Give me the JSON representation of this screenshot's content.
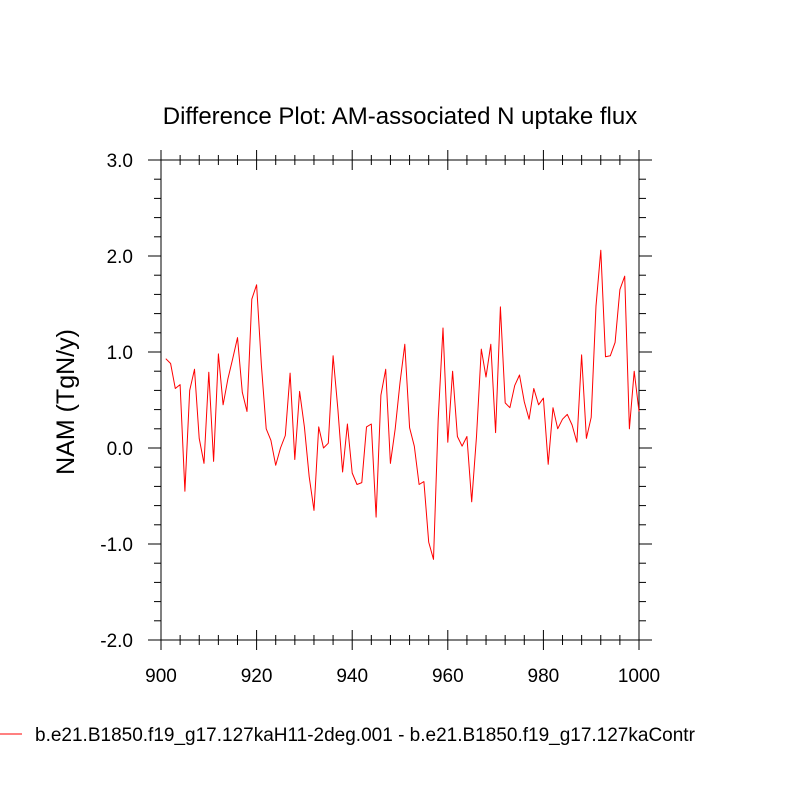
{
  "chart_data": {
    "type": "line",
    "title": "Difference Plot: AM-associated N uptake flux",
    "xlabel": "",
    "ylabel": "NAM  (TgN/y)",
    "xlim": [
      900,
      1000
    ],
    "ylim": [
      -2.0,
      3.0
    ],
    "x_ticks": [
      900,
      920,
      940,
      960,
      980,
      1000
    ],
    "x_tick_labels": [
      "900",
      "920",
      "940",
      "960",
      "980",
      "1000"
    ],
    "y_ticks": [
      -2.0,
      -1.0,
      0.0,
      1.0,
      2.0,
      3.0
    ],
    "y_tick_labels": [
      "-2.0",
      "-1.0",
      "0.0",
      "1.0",
      "2.0",
      "3.0"
    ],
    "grid": false,
    "legend_position": "bottom",
    "series": [
      {
        "name": "b.e21.B1850.f19_g17.127kaH11-2deg.001 - b.e21.B1850.f19_g17.127kaContr",
        "color": "#ff0000",
        "x": [
          901,
          902,
          903,
          904,
          905,
          906,
          907,
          908,
          909,
          910,
          911,
          912,
          913,
          914,
          915,
          916,
          917,
          918,
          919,
          920,
          921,
          922,
          923,
          924,
          925,
          926,
          927,
          928,
          929,
          930,
          931,
          932,
          933,
          934,
          935,
          936,
          937,
          938,
          939,
          940,
          941,
          942,
          943,
          944,
          945,
          946,
          947,
          948,
          949,
          950,
          951,
          952,
          953,
          954,
          955,
          956,
          957,
          958,
          959,
          960,
          961,
          962,
          963,
          964,
          965,
          966,
          967,
          968,
          969,
          970,
          971,
          972,
          973,
          974,
          975,
          976,
          977,
          978,
          979,
          980,
          981,
          982,
          983,
          984,
          985,
          986,
          987,
          988,
          989,
          990,
          991,
          992,
          993,
          994,
          995,
          996,
          997,
          998,
          999,
          1000
        ],
        "values": [
          0.93,
          0.88,
          0.62,
          0.66,
          -0.45,
          0.6,
          0.82,
          0.1,
          -0.16,
          0.79,
          -0.14,
          0.98,
          0.45,
          0.72,
          0.93,
          1.15,
          0.58,
          0.38,
          1.55,
          1.7,
          0.86,
          0.2,
          0.08,
          -0.18,
          0.0,
          0.13,
          0.78,
          -0.12,
          0.59,
          0.22,
          -0.3,
          -0.65,
          0.22,
          0.0,
          0.05,
          0.96,
          0.4,
          -0.25,
          0.25,
          -0.26,
          -0.38,
          -0.36,
          0.22,
          0.25,
          -0.72,
          0.55,
          0.82,
          -0.16,
          0.2,
          0.68,
          1.08,
          0.21,
          0.02,
          -0.38,
          -0.35,
          -0.98,
          -1.16,
          0.3,
          1.25,
          0.06,
          0.8,
          0.12,
          0.02,
          0.12,
          -0.56,
          0.12,
          1.03,
          0.74,
          1.08,
          0.16,
          1.47,
          0.47,
          0.42,
          0.65,
          0.76,
          0.48,
          0.3,
          0.62,
          0.45,
          0.52,
          -0.17,
          0.42,
          0.2,
          0.3,
          0.35,
          0.24,
          0.06,
          0.97,
          0.1,
          0.32,
          1.48,
          2.06,
          0.95,
          0.96,
          1.1,
          1.65,
          1.79,
          0.2,
          0.8,
          0.38
        ]
      }
    ]
  }
}
